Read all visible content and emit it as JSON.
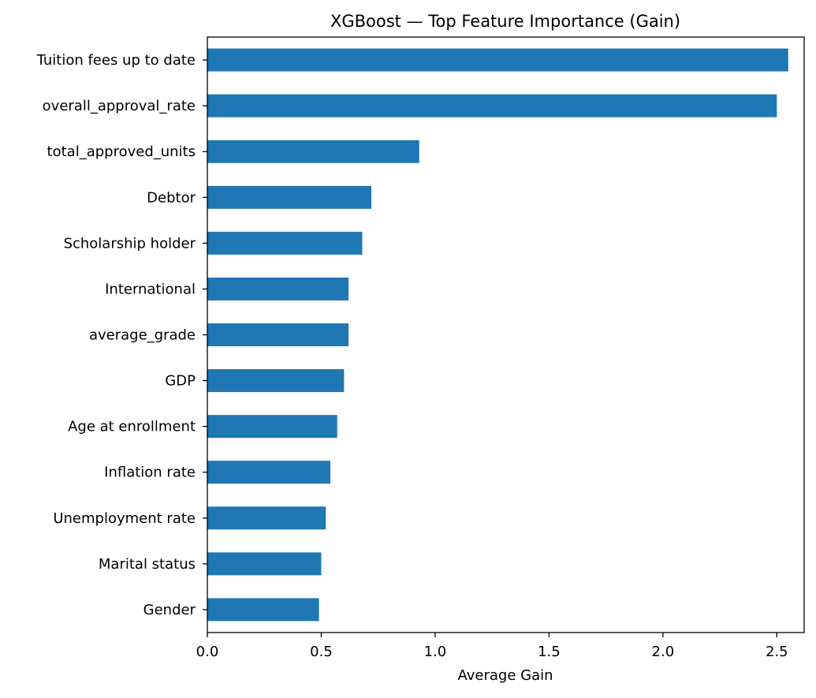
{
  "chart_data": {
    "type": "bar",
    "orientation": "horizontal",
    "title": "XGBoost — Top Feature Importance (Gain)",
    "xlabel": "Average Gain",
    "ylabel": "",
    "xlim": [
      0,
      2.62
    ],
    "xticks": [
      0.0,
      0.5,
      1.0,
      1.5,
      2.0,
      2.5
    ],
    "xtick_labels": [
      "0.0",
      "0.5",
      "1.0",
      "1.5",
      "2.0",
      "2.5"
    ],
    "categories": [
      "Tuition fees up to date",
      "overall_approval_rate",
      "total_approved_units",
      "Debtor",
      "Scholarship holder",
      "International",
      "average_grade",
      "GDP",
      "Age at enrollment",
      "Inflation rate",
      "Unemployment rate",
      "Marital status",
      "Gender"
    ],
    "values": [
      2.55,
      2.5,
      0.93,
      0.72,
      0.68,
      0.62,
      0.62,
      0.6,
      0.57,
      0.54,
      0.52,
      0.5,
      0.49
    ],
    "bar_color": "#1f77b4",
    "grid": false,
    "legend": "none"
  }
}
